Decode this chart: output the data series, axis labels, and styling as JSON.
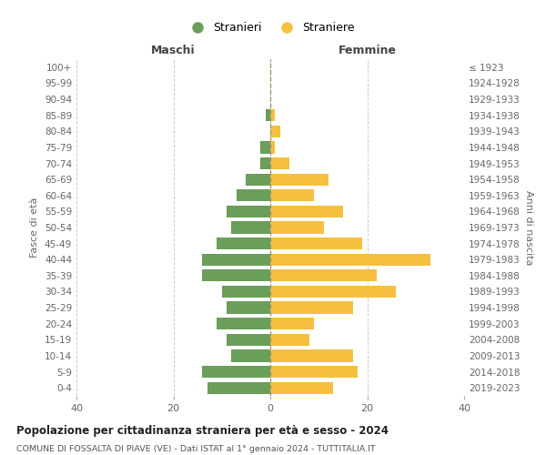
{
  "age_groups": [
    "100+",
    "95-99",
    "90-94",
    "85-89",
    "80-84",
    "75-79",
    "70-74",
    "65-69",
    "60-64",
    "55-59",
    "50-54",
    "45-49",
    "40-44",
    "35-39",
    "30-34",
    "25-29",
    "20-24",
    "15-19",
    "10-14",
    "5-9",
    "0-4"
  ],
  "birth_years": [
    "≤ 1923",
    "1924-1928",
    "1929-1933",
    "1934-1938",
    "1939-1943",
    "1944-1948",
    "1949-1953",
    "1954-1958",
    "1959-1963",
    "1964-1968",
    "1969-1973",
    "1974-1978",
    "1979-1983",
    "1984-1988",
    "1989-1993",
    "1994-1998",
    "1999-2003",
    "2004-2008",
    "2009-2013",
    "2014-2018",
    "2019-2023"
  ],
  "maschi": [
    0,
    0,
    0,
    1,
    0,
    2,
    2,
    5,
    7,
    9,
    8,
    11,
    14,
    14,
    10,
    9,
    11,
    9,
    8,
    14,
    13
  ],
  "femmine": [
    0,
    0,
    0,
    1,
    2,
    1,
    4,
    12,
    9,
    15,
    11,
    19,
    33,
    22,
    26,
    17,
    9,
    8,
    17,
    18,
    13
  ],
  "maschi_color": "#6a9e5a",
  "femmine_color": "#f5c040",
  "background_color": "#ffffff",
  "grid_color": "#cccccc",
  "title": "Popolazione per cittadinanza straniera per età e sesso - 2024",
  "subtitle": "COMUNE DI FOSSALTA DI PIAVE (VE) - Dati ISTAT al 1° gennaio 2024 - TUTTITALIA.IT",
  "ylabel_left": "Fasce di età",
  "ylabel_right": "Anni di nascita",
  "maschi_label": "Maschi",
  "femmine_label": "Femmine",
  "stranieri_legend": "Stranieri",
  "straniere_legend": "Straniere",
  "xlim": 40,
  "bar_height": 0.75
}
